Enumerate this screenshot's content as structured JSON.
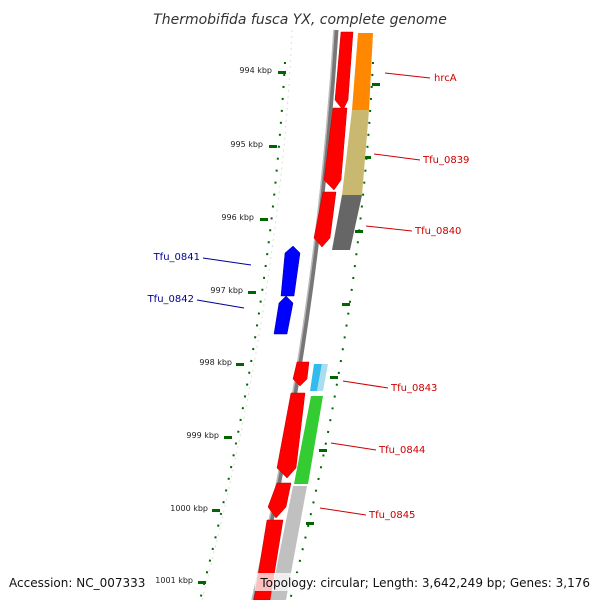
{
  "title": "Thermobifida fusca YX, complete genome",
  "footer": {
    "accession": "Accession: NC_007333",
    "summary": "Topology: circular; Length: 3,642,249 bp; Genes: 3,176"
  },
  "colors": {
    "forward_label": "#cc0000",
    "reverse_label": "#000099",
    "forward_gene": "#ff0000",
    "reverse_gene": "#0000ff",
    "backbone": "#888888",
    "tick": "#006600"
  },
  "kbp_ticks": [
    "994 kbp",
    "995 kbp",
    "996 kbp",
    "997 kbp",
    "998 kbp",
    "999 kbp",
    "1000 kbp",
    "1001 kbp"
  ],
  "genes": [
    {
      "name": "hrcA",
      "strand": "forward",
      "color": "#ff0000",
      "feature_color": "#ff8800"
    },
    {
      "name": "Tfu_0839",
      "strand": "forward",
      "color": "#ff0000",
      "feature_color": "#c8b870"
    },
    {
      "name": "Tfu_0840",
      "strand": "forward",
      "color": "#ff0000",
      "feature_color": "#666666"
    },
    {
      "name": "Tfu_0841",
      "strand": "reverse",
      "color": "#0000ff"
    },
    {
      "name": "Tfu_0842",
      "strand": "reverse",
      "color": "#0000ff"
    },
    {
      "name": "Tfu_0843",
      "strand": "forward",
      "color": "#ff0000",
      "feature_color": "#33bbee"
    },
    {
      "name": "Tfu_0844",
      "strand": "forward",
      "color": "#ff0000",
      "feature_color": "#33cc33"
    },
    {
      "name": "Tfu_0845",
      "strand": "forward",
      "color": "#ff0000",
      "feature_color": "#c0c0c0"
    }
  ]
}
